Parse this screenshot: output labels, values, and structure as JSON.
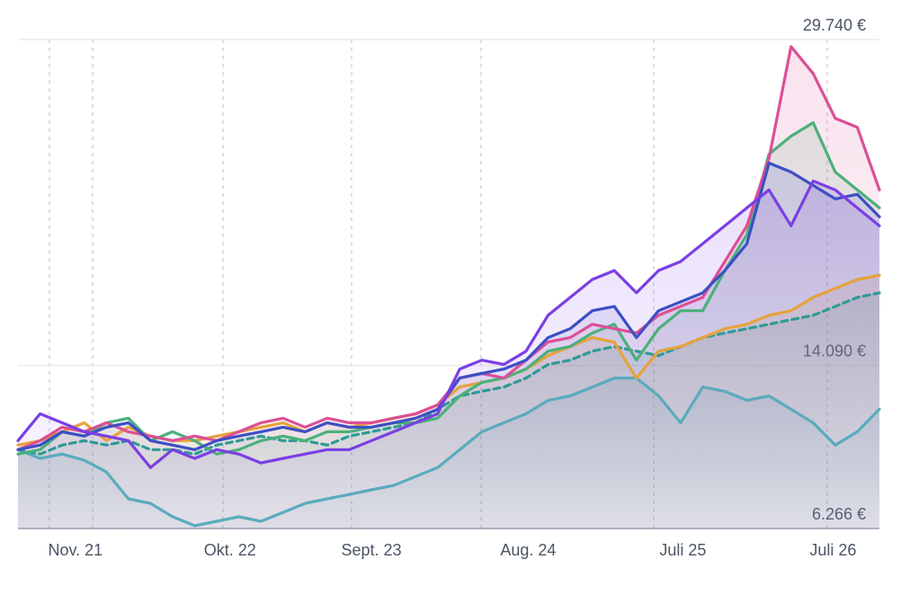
{
  "chart_data": {
    "type": "line",
    "x": [
      0,
      1,
      2,
      3,
      4,
      5,
      6,
      7,
      8,
      9,
      10,
      11,
      12,
      13,
      14,
      15,
      16,
      17,
      18,
      19,
      20,
      21,
      22,
      23,
      24,
      25,
      26,
      27,
      28,
      29,
      30,
      31,
      32,
      33,
      34,
      35,
      36,
      37,
      38,
      39
    ],
    "xlim": [
      0,
      39
    ],
    "xticks": [
      {
        "value": 2.6,
        "label": "Nov. 21"
      },
      {
        "value": 9.6,
        "label": "Okt. 22"
      },
      {
        "value": 16.0,
        "label": "Sept. 23"
      },
      {
        "value": 23.1,
        "label": "Aug. 24"
      },
      {
        "value": 30.1,
        "label": "Juli 25"
      },
      {
        "value": 36.9,
        "label": "Juli 26"
      }
    ],
    "ylim": [
      6266,
      29740
    ],
    "yticks": [
      {
        "value": 29740,
        "label": "29.740 €"
      },
      {
        "value": 14090,
        "label": "14.090 €"
      },
      {
        "value": 6266,
        "label": "6.266 €"
      }
    ],
    "grid": true,
    "series": [
      {
        "color": "#5aabbd",
        "values": [
          10050,
          9630,
          9840,
          9540,
          8980,
          7690,
          7470,
          6830,
          6400,
          6610,
          6830,
          6610,
          7040,
          7470,
          7690,
          7900,
          8120,
          8330,
          8760,
          9190,
          10050,
          10910,
          11340,
          11770,
          12420,
          12630,
          13060,
          13490,
          13490,
          12630,
          11340,
          13060,
          12850,
          12420,
          12630,
          11990,
          11340,
          10270,
          10910,
          11990
        ]
      },
      {
        "color": "#2f9a96",
        "line_style": "dashed",
        "values": [
          10050,
          9840,
          10270,
          10480,
          10270,
          10480,
          10050,
          10050,
          9840,
          10270,
          10480,
          10700,
          10480,
          10480,
          10270,
          10700,
          10910,
          11130,
          11340,
          11990,
          12630,
          12850,
          13060,
          13490,
          14140,
          14350,
          14780,
          15000,
          14780,
          14570,
          15000,
          15430,
          15650,
          15860,
          16070,
          16290,
          16500,
          16930,
          17360,
          17580
        ]
      },
      {
        "color": "#e6a23c",
        "values": [
          10270,
          10480,
          10910,
          11340,
          10480,
          11130,
          10700,
          10480,
          10480,
          10700,
          10910,
          11130,
          11340,
          10910,
          11340,
          11130,
          11340,
          11560,
          11770,
          12200,
          13060,
          13280,
          13490,
          13920,
          14570,
          15000,
          15430,
          15210,
          13490,
          14780,
          15000,
          15430,
          15860,
          16070,
          16500,
          16720,
          17360,
          17790,
          18220,
          18420
        ]
      },
      {
        "color": "#4bb07a",
        "values": [
          9840,
          10050,
          10910,
          10700,
          11340,
          11560,
          10480,
          10910,
          10480,
          9840,
          10050,
          10480,
          10700,
          10480,
          10910,
          10910,
          11130,
          11340,
          11340,
          11560,
          12630,
          13280,
          13490,
          13920,
          14780,
          15000,
          15650,
          16070,
          14350,
          15860,
          16720,
          16720,
          18650,
          20370,
          24240,
          25100,
          25750,
          23380,
          22520,
          21660
        ]
      },
      {
        "color": "#dc4f96",
        "values": [
          10050,
          10480,
          11130,
          10910,
          11340,
          10910,
          10700,
          10480,
          10700,
          10480,
          10910,
          11340,
          11560,
          11130,
          11560,
          11340,
          11340,
          11560,
          11770,
          12200,
          13490,
          13710,
          13490,
          14350,
          15220,
          15430,
          16070,
          15860,
          15650,
          16500,
          16930,
          17360,
          19080,
          20800,
          24030,
          29400,
          28110,
          25960,
          25530,
          22520
        ]
      },
      {
        "color": "#3d4fc4",
        "values": [
          10050,
          10270,
          10910,
          10700,
          11130,
          11340,
          10480,
          10270,
          10050,
          10480,
          10700,
          10910,
          11130,
          10910,
          11340,
          11130,
          11130,
          11340,
          11560,
          11990,
          13490,
          13710,
          13920,
          14350,
          15430,
          15860,
          16720,
          16930,
          15430,
          16720,
          17150,
          17580,
          18650,
          19940,
          23810,
          23380,
          22740,
          22090,
          22310,
          21230
        ]
      },
      {
        "color": "#7b3fe4",
        "values": [
          10480,
          11770,
          11340,
          10910,
          10700,
          10480,
          9190,
          10050,
          9630,
          10050,
          9840,
          9410,
          9630,
          9840,
          10050,
          10050,
          10480,
          10910,
          11340,
          11770,
          13920,
          14350,
          14140,
          14780,
          16500,
          17360,
          18220,
          18650,
          17580,
          18650,
          19080,
          19940,
          20800,
          21660,
          22520,
          20800,
          22950,
          22520,
          21660,
          20800
        ]
      }
    ]
  }
}
